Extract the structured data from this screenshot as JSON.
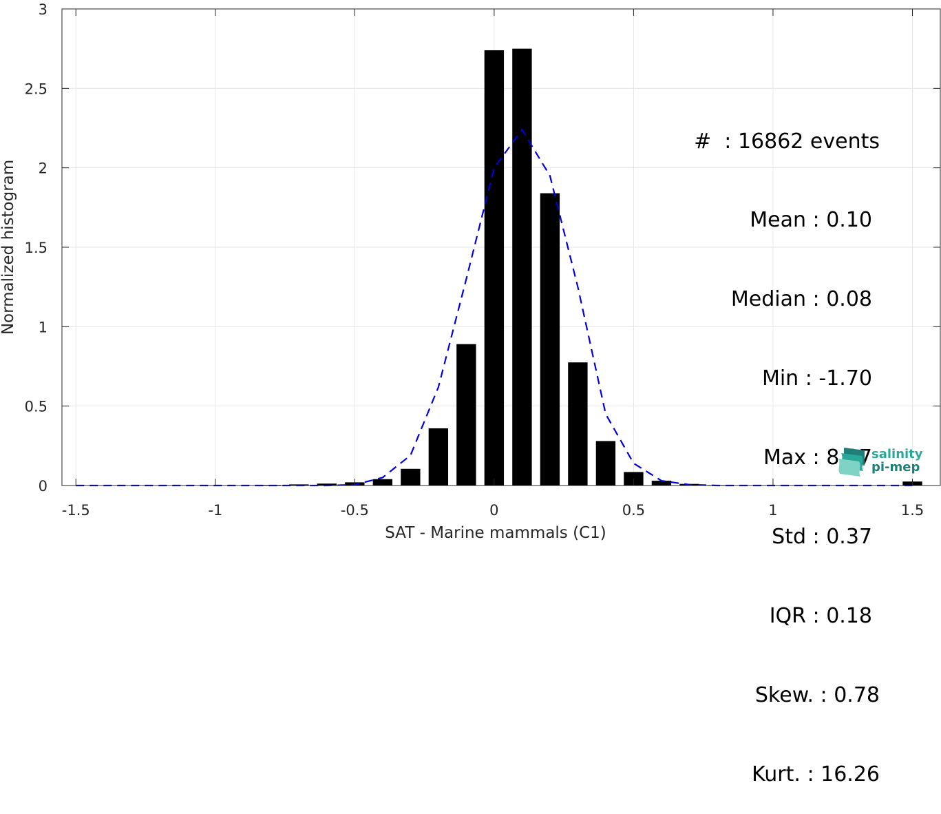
{
  "chart_data": {
    "type": "bar",
    "xlabel": "SAT - Marine mammals (C1)",
    "ylabel": "Normalized histogram",
    "xlim": [
      -1.55,
      1.6
    ],
    "ylim": [
      0,
      3
    ],
    "xticks": [
      -1.5,
      -1,
      -0.5,
      0,
      0.5,
      1,
      1.5
    ],
    "xtick_labels": [
      "-1.5",
      "-1",
      "-0.5",
      "0",
      "0.5",
      "1",
      "1.5"
    ],
    "yticks": [
      0,
      0.5,
      1,
      1.5,
      2,
      2.5,
      3
    ],
    "ytick_labels": [
      "0",
      "0.5",
      "1",
      "1.5",
      "2",
      "2.5",
      "3"
    ],
    "grid": true,
    "bar_width": 0.07,
    "bar_color": "#000000",
    "x": [
      -1.5,
      -1.4,
      -1.3,
      -1.2,
      -1.1,
      -1.0,
      -0.9,
      -0.8,
      -0.7,
      -0.6,
      -0.5,
      -0.4,
      -0.3,
      -0.2,
      -0.1,
      0.0,
      0.1,
      0.2,
      0.3,
      0.4,
      0.5,
      0.6,
      0.7,
      0.8,
      0.9,
      1.0,
      1.1,
      1.2,
      1.3,
      1.4,
      1.5
    ],
    "values": [
      0.0,
      0.0,
      0.0,
      0.0,
      0.0,
      0.0,
      0.002,
      0.004,
      0.007,
      0.012,
      0.02,
      0.04,
      0.105,
      0.36,
      0.89,
      2.74,
      2.75,
      1.84,
      0.775,
      0.28,
      0.085,
      0.03,
      0.01,
      0.003,
      0.001,
      0.0,
      0.0,
      0.0,
      0.0,
      0.0,
      0.025
    ],
    "fit_curve": {
      "color": "#0000dd",
      "style": "dashed",
      "x": [
        -1.5,
        -1.4,
        -1.3,
        -1.2,
        -1.1,
        -1.0,
        -0.9,
        -0.8,
        -0.7,
        -0.6,
        -0.5,
        -0.4,
        -0.3,
        -0.2,
        -0.1,
        0.0,
        0.1,
        0.2,
        0.3,
        0.4,
        0.5,
        0.6,
        0.7,
        0.8,
        0.9,
        1.0,
        1.1,
        1.2,
        1.3,
        1.4,
        1.5
      ],
      "y": [
        0,
        0,
        0,
        0,
        0,
        0,
        0,
        0,
        0,
        0,
        0.005,
        0.05,
        0.19,
        0.62,
        1.3,
        2.0,
        2.24,
        1.95,
        1.25,
        0.45,
        0.14,
        0.03,
        0.005,
        0,
        0,
        0,
        0,
        0,
        0,
        0,
        0
      ]
    },
    "annotations": [
      "#  : 16862 events",
      "Mean : 0.10",
      "Median : 0.08",
      "Min : -1.70",
      "Max : 8.27",
      "Std : 0.37",
      "IQR : 0.18",
      "Skew. : 0.78",
      "Kurt. : 16.26"
    ]
  },
  "logo": {
    "line1": "salinity",
    "line2": "pi-mep"
  }
}
